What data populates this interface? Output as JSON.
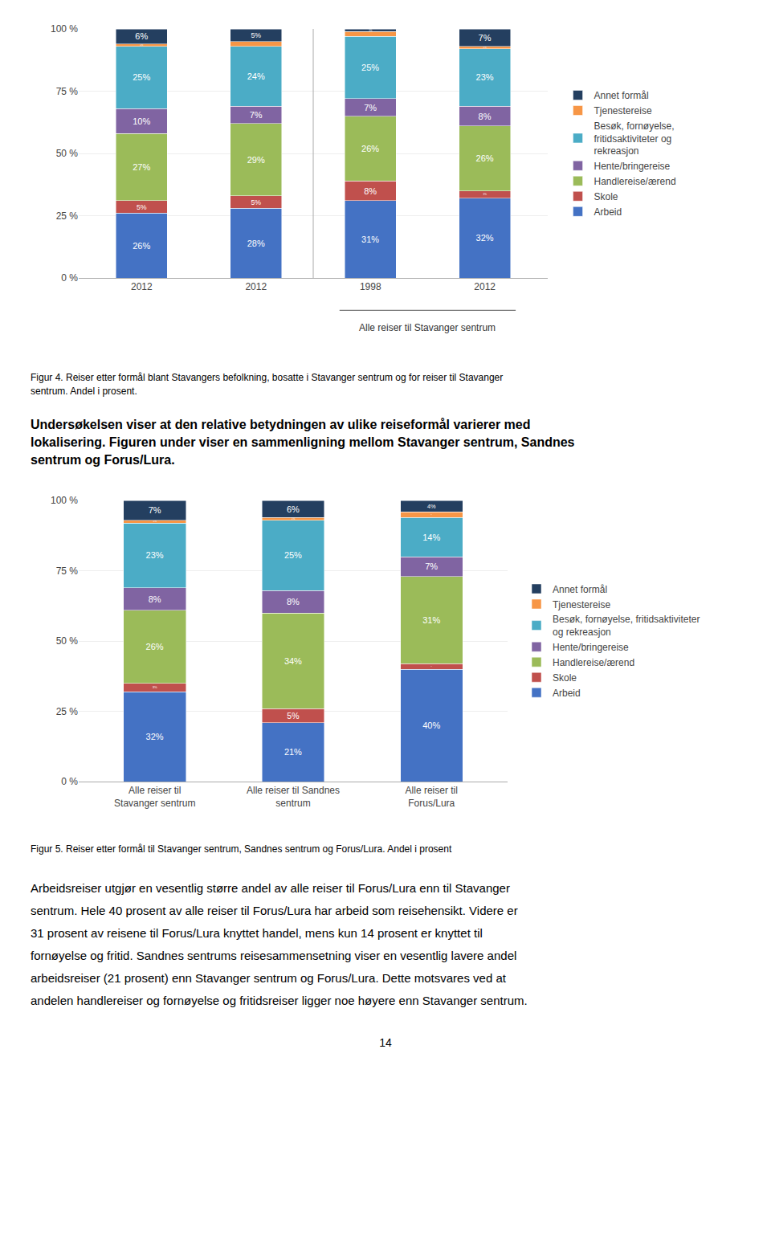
{
  "chart_data": [
    {
      "type": "bar",
      "title": "Figur 4. Reiser etter formål blant Stavangers befolkning, bosatte i Stavanger sentrum og for reiser til Stavanger\nsentrum. Andel i prosent.",
      "categories": [
        "2012",
        "2012",
        "1998",
        "2012"
      ],
      "series": [
        {
          "name": "Arbeid",
          "color": "#4472C4",
          "values": [
            26,
            28,
            31,
            32
          ],
          "value_labels": [
            "26%",
            "28%",
            "31%",
            "32%"
          ]
        },
        {
          "name": "Skole",
          "color": "#C0504D",
          "values": [
            5,
            5,
            8,
            3
          ],
          "value_labels": [
            "5%",
            "5%",
            "8%",
            "3%"
          ]
        },
        {
          "name": "Handlereise/ærend",
          "color": "#9BBB59",
          "values": [
            27,
            29,
            26,
            26
          ],
          "value_labels": [
            "27%",
            "29%",
            "26%",
            "26%"
          ]
        },
        {
          "name": "Hente/bringereise",
          "color": "#8064A2",
          "values": [
            10,
            7,
            7,
            8
          ],
          "value_labels": [
            "10%",
            "7%",
            "7%",
            "8%"
          ]
        },
        {
          "name": "Besøk, fornøyelse,\nfritidsaktiviteter og\nrekreasjon",
          "color": "#4BACC6",
          "values": [
            25,
            24,
            25,
            23
          ],
          "value_labels": [
            "25%",
            "24%",
            "25%",
            "23%"
          ]
        },
        {
          "name": "Tjenestereise",
          "color": "#F79646",
          "values": [
            1,
            2,
            2,
            1
          ],
          "value_labels": [
            "1%",
            "2%",
            "2%",
            "1%"
          ]
        },
        {
          "name": "Annet formål",
          "color": "#243F60",
          "values": [
            6,
            5,
            1,
            7
          ],
          "value_labels": [
            "6%",
            "5%",
            "1%",
            "7%"
          ]
        }
      ],
      "ylim": [
        0,
        100
      ],
      "yticks": [
        {
          "value": 0,
          "label": "0 %"
        },
        {
          "value": 25,
          "label": "25 %"
        },
        {
          "value": 50,
          "label": "50 %"
        },
        {
          "value": 75,
          "label": "75 %"
        },
        {
          "value": 100,
          "label": "100 %"
        }
      ],
      "grid": true,
      "stacked": true,
      "data_labels": true,
      "legend": "right",
      "annotations": [
        "Alle reiser til Stavanger sentrum",
        "Undersøkelsen viser at den relative betydningen av ulike reiseformål varierer med\nlokalisering. Figuren under viser en sammenligning mellom Stavanger sentrum, Sandnes\nsentrum og Forus/Lura."
      ]
    },
    {
      "type": "bar",
      "title": "Figur 5. Reiser etter formål til Stavanger sentrum, Sandnes sentrum og Forus/Lura. Andel i prosent",
      "categories": [
        "Alle reiser til\nStavanger sentrum",
        "Alle reiser til Sandnes\nsentrum",
        "Alle reiser til\nForus/Lura"
      ],
      "series": [
        {
          "name": "Arbeid",
          "color": "#4472C4",
          "values": [
            32,
            21,
            40
          ],
          "value_labels": [
            "32%",
            "21%",
            "40%"
          ]
        },
        {
          "name": "Skole",
          "color": "#C0504D",
          "values": [
            3,
            5,
            2
          ],
          "value_labels": [
            "3%",
            "5%",
            "2%"
          ]
        },
        {
          "name": "Handlereise/ærend",
          "color": "#9BBB59",
          "values": [
            26,
            34,
            31
          ],
          "value_labels": [
            "26%",
            "34%",
            "31%"
          ]
        },
        {
          "name": "Hente/bringereise",
          "color": "#8064A2",
          "values": [
            8,
            8,
            7
          ],
          "value_labels": [
            "8%",
            "8%",
            "7%"
          ]
        },
        {
          "name": "Besøk, fornøyelse, fritidsaktiviteter\nog rekreasjon",
          "color": "#4BACC6",
          "values": [
            23,
            25,
            14
          ],
          "value_labels": [
            "23%",
            "25%",
            "14%"
          ]
        },
        {
          "name": "Tjenestereise",
          "color": "#F79646",
          "values": [
            1,
            1,
            2
          ],
          "value_labels": [
            "1%",
            "1%",
            "2%"
          ]
        },
        {
          "name": "Annet formål",
          "color": "#243F60",
          "values": [
            7,
            6,
            4
          ],
          "value_labels": [
            "7%",
            "6%",
            "4%"
          ]
        }
      ],
      "ylim": [
        0,
        100
      ],
      "yticks": [
        {
          "value": 0,
          "label": "0 %"
        },
        {
          "value": 25,
          "label": "25 %"
        },
        {
          "value": 50,
          "label": "50 %"
        },
        {
          "value": 75,
          "label": "75 %"
        },
        {
          "value": 100,
          "label": "100 %"
        }
      ],
      "grid": true,
      "stacked": true,
      "data_labels": true,
      "legend": "right",
      "annotations": [
        "Arbeidsreiser utgjør en vesentlig større andel av alle reiser til Forus/Lura enn til Stavanger",
        "sentrum. Hele 40 prosent av alle reiser til Forus/Lura har arbeid som reisehensikt. Videre er",
        "31 prosent av reisene til Forus/Lura knyttet handel, mens kun 14 prosent er knyttet til",
        "fornøyelse og fritid. Sandnes sentrums reisesammensetning viser en vesentlig lavere andel",
        "arbeidsreiser (21 prosent) enn Stavanger sentrum og Forus/Lura. Dette motsvares ved at",
        "andelen handlereiser og fornøyelse og fritidsreiser ligger noe høyere enn Stavanger sentrum.",
        "14"
      ]
    }
  ]
}
